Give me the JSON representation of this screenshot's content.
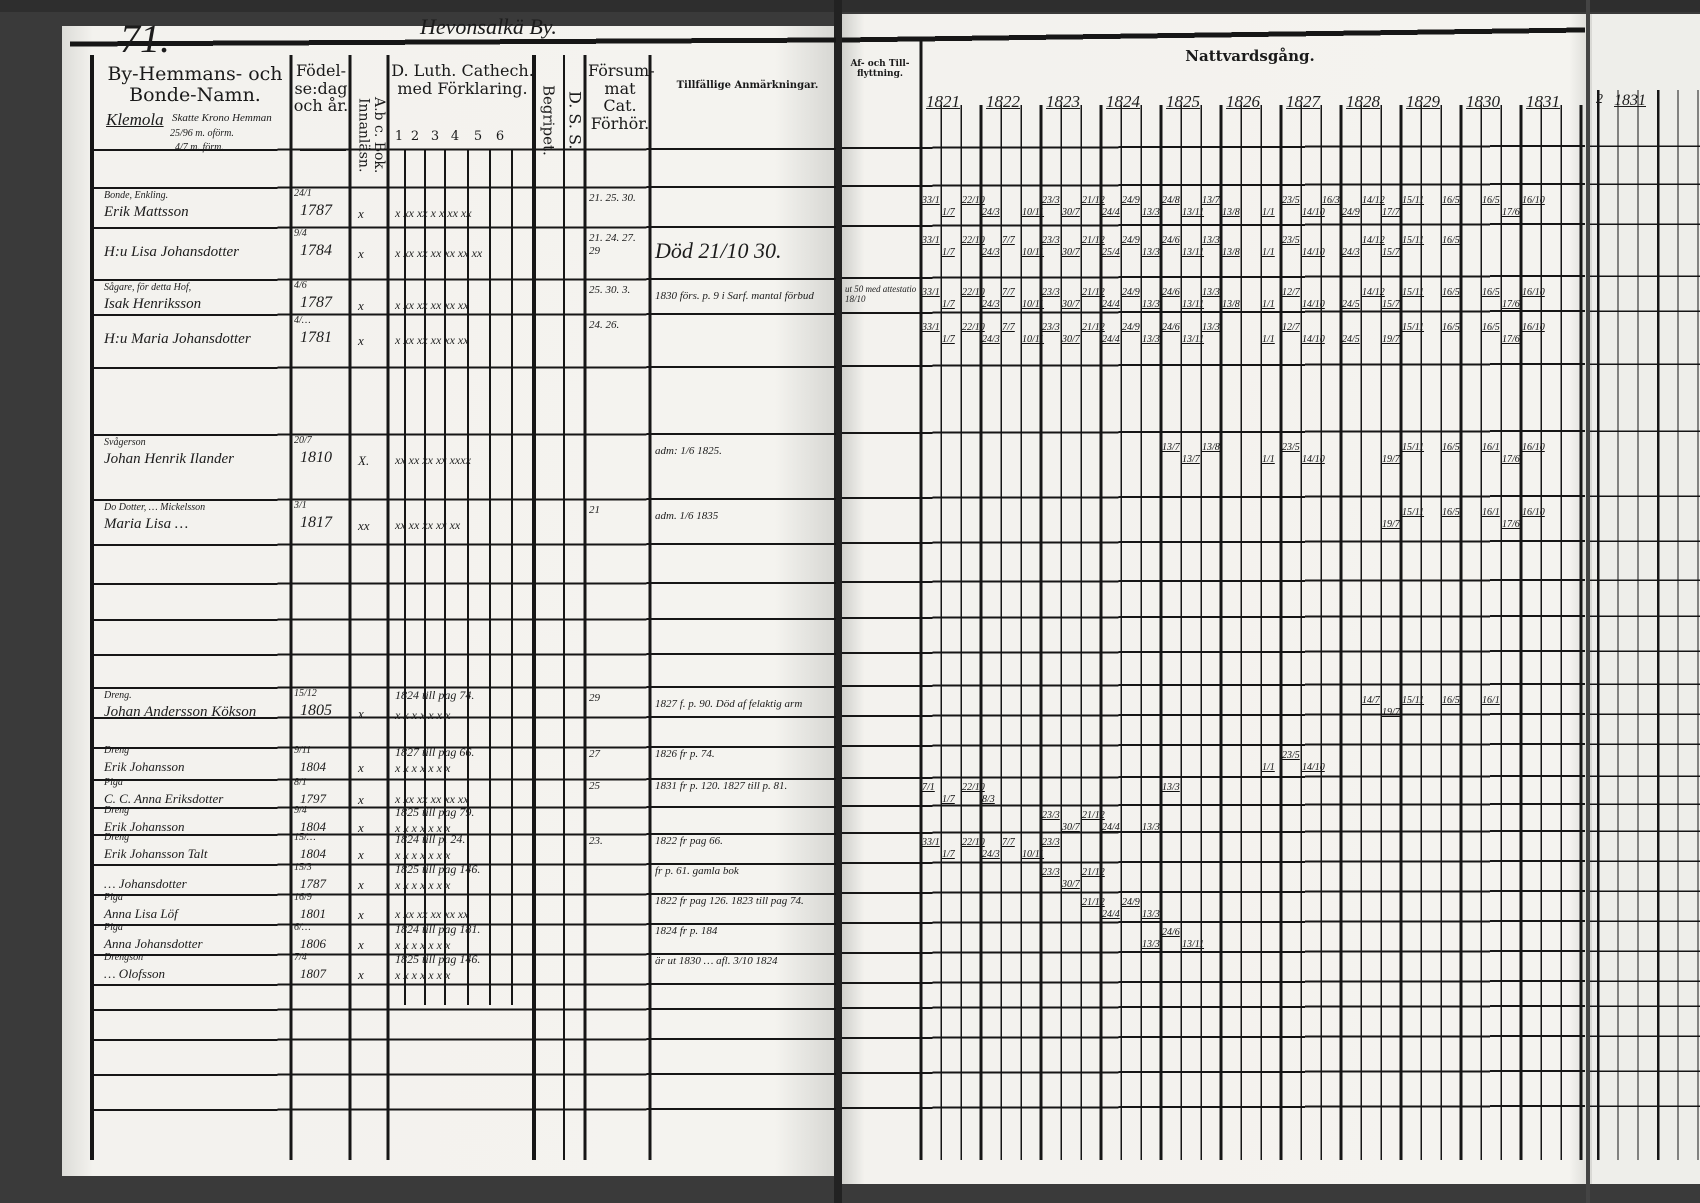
{
  "page_number": "71.",
  "village": "Hevonsalkä By.",
  "farm": {
    "name": "Klemola",
    "type": "Skatte Krono Hemman",
    "shares": [
      "25/96 m. oförm.",
      "4/7 m. förm."
    ]
  },
  "left_headers": {
    "name": "By-Hemmans- och Bonde-Namn.",
    "birth": "Födel-se:dag och år.",
    "abc": "A.b c. Bok. Innanläsn.",
    "catechism": "D. Luth. Cathech. med Förklaring.",
    "catechism_sub": [
      "1",
      "2",
      "3",
      "4",
      "5",
      "6"
    ],
    "begripet": "Begripet.",
    "dss": "D. S. S.",
    "forsummat": "Försum-mat Cat. Förhör.",
    "notes": "Tillfällige Anmärkningar."
  },
  "right_headers": {
    "moves": "Af- och Till-flyttning.",
    "communion": "Nattvardsgång.",
    "years": [
      "1821",
      "1822",
      "1823",
      "1824",
      "1825",
      "1826",
      "1827",
      "1828",
      "1829",
      "1830",
      "1831"
    ],
    "strip_year": "1831",
    "strip_mark": "2"
  },
  "persons": [
    {
      "occupation": "Bonde, Enkling.",
      "name": "Erik Mattsson",
      "birth_day": "24/1",
      "birth_year": "1787",
      "abc": "x",
      "catechism": "x xx xx x x xx xx",
      "forsummat": "21. 25. 30.",
      "notes": "",
      "moves": "",
      "communion": [
        "33/1",
        "1/7",
        "22/10",
        "24/3",
        "",
        "10/11",
        "23/3",
        "30/7",
        "21/12",
        "24/4",
        "24/9",
        "13/3",
        "24/8",
        "13/11",
        "13/7",
        "13/8",
        "",
        "1/1",
        "23/5",
        "14/10",
        "16/3",
        "24/9",
        "14/12",
        "17/7",
        "15/11",
        "",
        "16/5",
        "",
        "16/5",
        "17/6",
        "16/10"
      ]
    },
    {
      "occupation": "",
      "name": "H:u Lisa Johansdotter",
      "birth_day": "9/4",
      "birth_year": "1784",
      "abc": "x",
      "catechism": "x xx xx xx xx xx xx",
      "forsummat": "21. 24. 27. 29",
      "notes": "Död 21/10 30.",
      "moves": "",
      "communion": [
        "33/1",
        "1/7",
        "22/10",
        "24/3",
        "7/7",
        "10/11",
        "23/3",
        "30/7",
        "21/12",
        "25/4",
        "24/9",
        "13/3",
        "24/6",
        "13/11",
        "13/3",
        "13/8",
        "",
        "1/1",
        "23/5",
        "14/10",
        "",
        "24/3",
        "14/12",
        "15/7",
        "15/11",
        "",
        "16/5"
      ]
    },
    {
      "occupation": "Sågare, för detta Hof,",
      "name": "Isak Henriksson",
      "birth_day": "4/6",
      "birth_year": "1787",
      "abc": "x",
      "catechism": "x xx xx xx xx xx",
      "forsummat": "25. 30. 3.",
      "notes": "1830 förs. p. 9 i Sarf. mantal förbud",
      "moves": "ut 50 med attestatio 18/10",
      "communion": [
        "33/1",
        "1/7",
        "22/10",
        "24/3",
        "7/7",
        "10/11",
        "23/3",
        "30/7",
        "21/12",
        "24/4",
        "24/9",
        "13/3",
        "24/6",
        "13/11",
        "13/3",
        "13/8",
        "",
        "1/1",
        "12/7",
        "14/10",
        "",
        "24/5",
        "14/12",
        "15/7",
        "15/11",
        "",
        "16/5",
        "",
        "16/5",
        "17/6",
        "16/10"
      ]
    },
    {
      "occupation": "",
      "name": "H:u Maria Johansdotter",
      "birth_day": "4/…",
      "birth_year": "1781",
      "abc": "x",
      "catechism": "x xx xx xx xx xx",
      "forsummat": "24. 26.",
      "notes": "",
      "moves": "",
      "communion": [
        "33/1",
        "1/7",
        "22/10",
        "24/3",
        "7/7",
        "10/11",
        "23/3",
        "30/7",
        "21/12",
        "24/4",
        "24/9",
        "13/3",
        "24/6",
        "13/11",
        "13/3",
        "",
        "",
        "1/1",
        "12/7",
        "14/10",
        "",
        "24/5",
        "",
        "19/7",
        "15/11",
        "",
        "16/5",
        "",
        "16/5",
        "17/6",
        "16/10"
      ]
    },
    {
      "occupation": "Svågerson",
      "name": "Johan Henrik Ilander",
      "birth_day": "20/7",
      "birth_year": "1810",
      "abc": "X.",
      "catechism": "xx xx xx xx xxxx",
      "forsummat": "",
      "notes": "adm: 1/6 1825.",
      "moves": "",
      "communion": [
        "",
        "",
        "",
        "",
        "",
        "",
        "",
        "",
        "",
        "",
        "",
        "",
        "13/7",
        "13/7",
        "13/8",
        "",
        "",
        "1/1",
        "23/5",
        "14/10",
        "",
        "",
        "",
        "19/7",
        "15/11",
        "",
        "16/5",
        "",
        "16/1",
        "17/6",
        "16/10"
      ]
    },
    {
      "occupation": "Do Dotter, … Mickelsson",
      "name": "Maria Lisa …",
      "birth_day": "3/1",
      "birth_year": "1817",
      "abc": "xx",
      "catechism": "xx xx xx xx xx",
      "forsummat": "21",
      "notes": "adm. 1/6 1835",
      "moves": "",
      "communion": [
        "",
        "",
        "",
        "",
        "",
        "",
        "",
        "",
        "",
        "",
        "",
        "",
        "",
        "",
        "",
        "",
        "",
        "",
        "",
        "",
        "",
        "",
        "",
        "19/7",
        "15/11",
        "",
        "16/5",
        "",
        "16/1",
        "17/6",
        "16/10"
      ]
    },
    {
      "occupation": "Dreng.",
      "name": "Johan Andersson Kökson",
      "birth_day": "15/12",
      "birth_year": "1805",
      "abc": "x",
      "catechism": "1824 till pag 74.",
      "forsummat": "29",
      "notes": "1827 f. p. 90. Död af felaktig arm",
      "moves": "",
      "communion": [
        "",
        "",
        "",
        "",
        "",
        "",
        "",
        "",
        "",
        "",
        "",
        "",
        "",
        "",
        "",
        "",
        "",
        "",
        "",
        "",
        "",
        "",
        "14/7",
        "19/7",
        "15/11",
        "",
        "16/5",
        "",
        "16/1"
      ]
    },
    {
      "occupation": "Dreng",
      "name": "Erik Johansson",
      "birth_day": "9/11",
      "birth_year": "1804",
      "abc": "x",
      "catechism": "1827 till pag 66.",
      "forsummat": "27",
      "notes": "1826 fr p. 74.",
      "moves": "",
      "communion": [
        "",
        "",
        "",
        "",
        "",
        "",
        "",
        "",
        "",
        "",
        "",
        "",
        "",
        "",
        "",
        "",
        "",
        "1/1",
        "23/5",
        "14/10"
      ]
    },
    {
      "occupation": "Piga",
      "name": "C. C. Anna Eriksdotter",
      "birth_day": "8/1",
      "birth_year": "1797",
      "abc": "x",
      "catechism": "x xx xx xx xx xx",
      "forsummat": "25",
      "notes": "1831 fr p. 120. 1827 till p. 81.",
      "moves": "",
      "communion": [
        "7/1",
        "1/7",
        "22/10",
        "8/3",
        "",
        "",
        "",
        "",
        "",
        "",
        "",
        "",
        "13/3"
      ]
    },
    {
      "occupation": "Dreng",
      "name": "Erik Johansson",
      "birth_day": "9/4",
      "birth_year": "1804",
      "abc": "x",
      "catechism": "1825 till pag 79.",
      "forsummat": "",
      "notes": "",
      "moves": "",
      "communion": [
        "",
        "",
        "",
        "",
        "",
        "",
        "23/3",
        "30/7",
        "21/12",
        "24/4",
        "",
        "13/3"
      ]
    },
    {
      "occupation": "Dreng",
      "name": "Erik Johansson Talt",
      "birth_day": "15/…",
      "birth_year": "1804",
      "abc": "x",
      "catechism": "1824 till p. 24.",
      "forsummat": "23.",
      "notes": "1822 fr pag 66.",
      "moves": "",
      "communion": [
        "33/1",
        "1/7",
        "22/10",
        "24/3",
        "7/7",
        "10/11",
        "23/3"
      ]
    },
    {
      "occupation": "",
      "name": "… Johansdotter",
      "birth_day": "15/3",
      "birth_year": "1787",
      "abc": "x",
      "catechism": "1825 till pag 146.",
      "forsummat": "",
      "notes": "fr p. 61. gamla bok",
      "moves": "",
      "communion": [
        "",
        "",
        "",
        "",
        "",
        "",
        "23/3",
        "30/7",
        "21/12"
      ]
    },
    {
      "occupation": "Piga",
      "name": "Anna Lisa Löf",
      "birth_day": "16/9",
      "birth_year": "1801",
      "abc": "x",
      "catechism": "x xx xx xx xx xx",
      "forsummat": "",
      "notes": "1822 fr pag 126. 1823 till pag 74.",
      "moves": "",
      "communion": [
        "",
        "",
        "",
        "",
        "",
        "",
        "",
        "",
        "21/12",
        "24/4",
        "24/9",
        "13/3"
      ]
    },
    {
      "occupation": "Piga",
      "name": "Anna Johansdotter",
      "birth_day": "6/…",
      "birth_year": "1806",
      "abc": "x",
      "catechism": "1824 till pag 181.",
      "forsummat": "",
      "notes": "1824 fr p. 184",
      "moves": "",
      "communion": [
        "",
        "",
        "",
        "",
        "",
        "",
        "",
        "",
        "",
        "",
        "",
        "13/3",
        "24/6",
        "13/11"
      ]
    },
    {
      "occupation": "Drengson",
      "name": "… Olofsson",
      "birth_day": "7/4",
      "birth_year": "1807",
      "abc": "x",
      "catechism": "1825 till pag 146.",
      "forsummat": "",
      "notes": "är ut 1830 … afl. 3/10 1824",
      "moves": "",
      "communion": []
    }
  ]
}
